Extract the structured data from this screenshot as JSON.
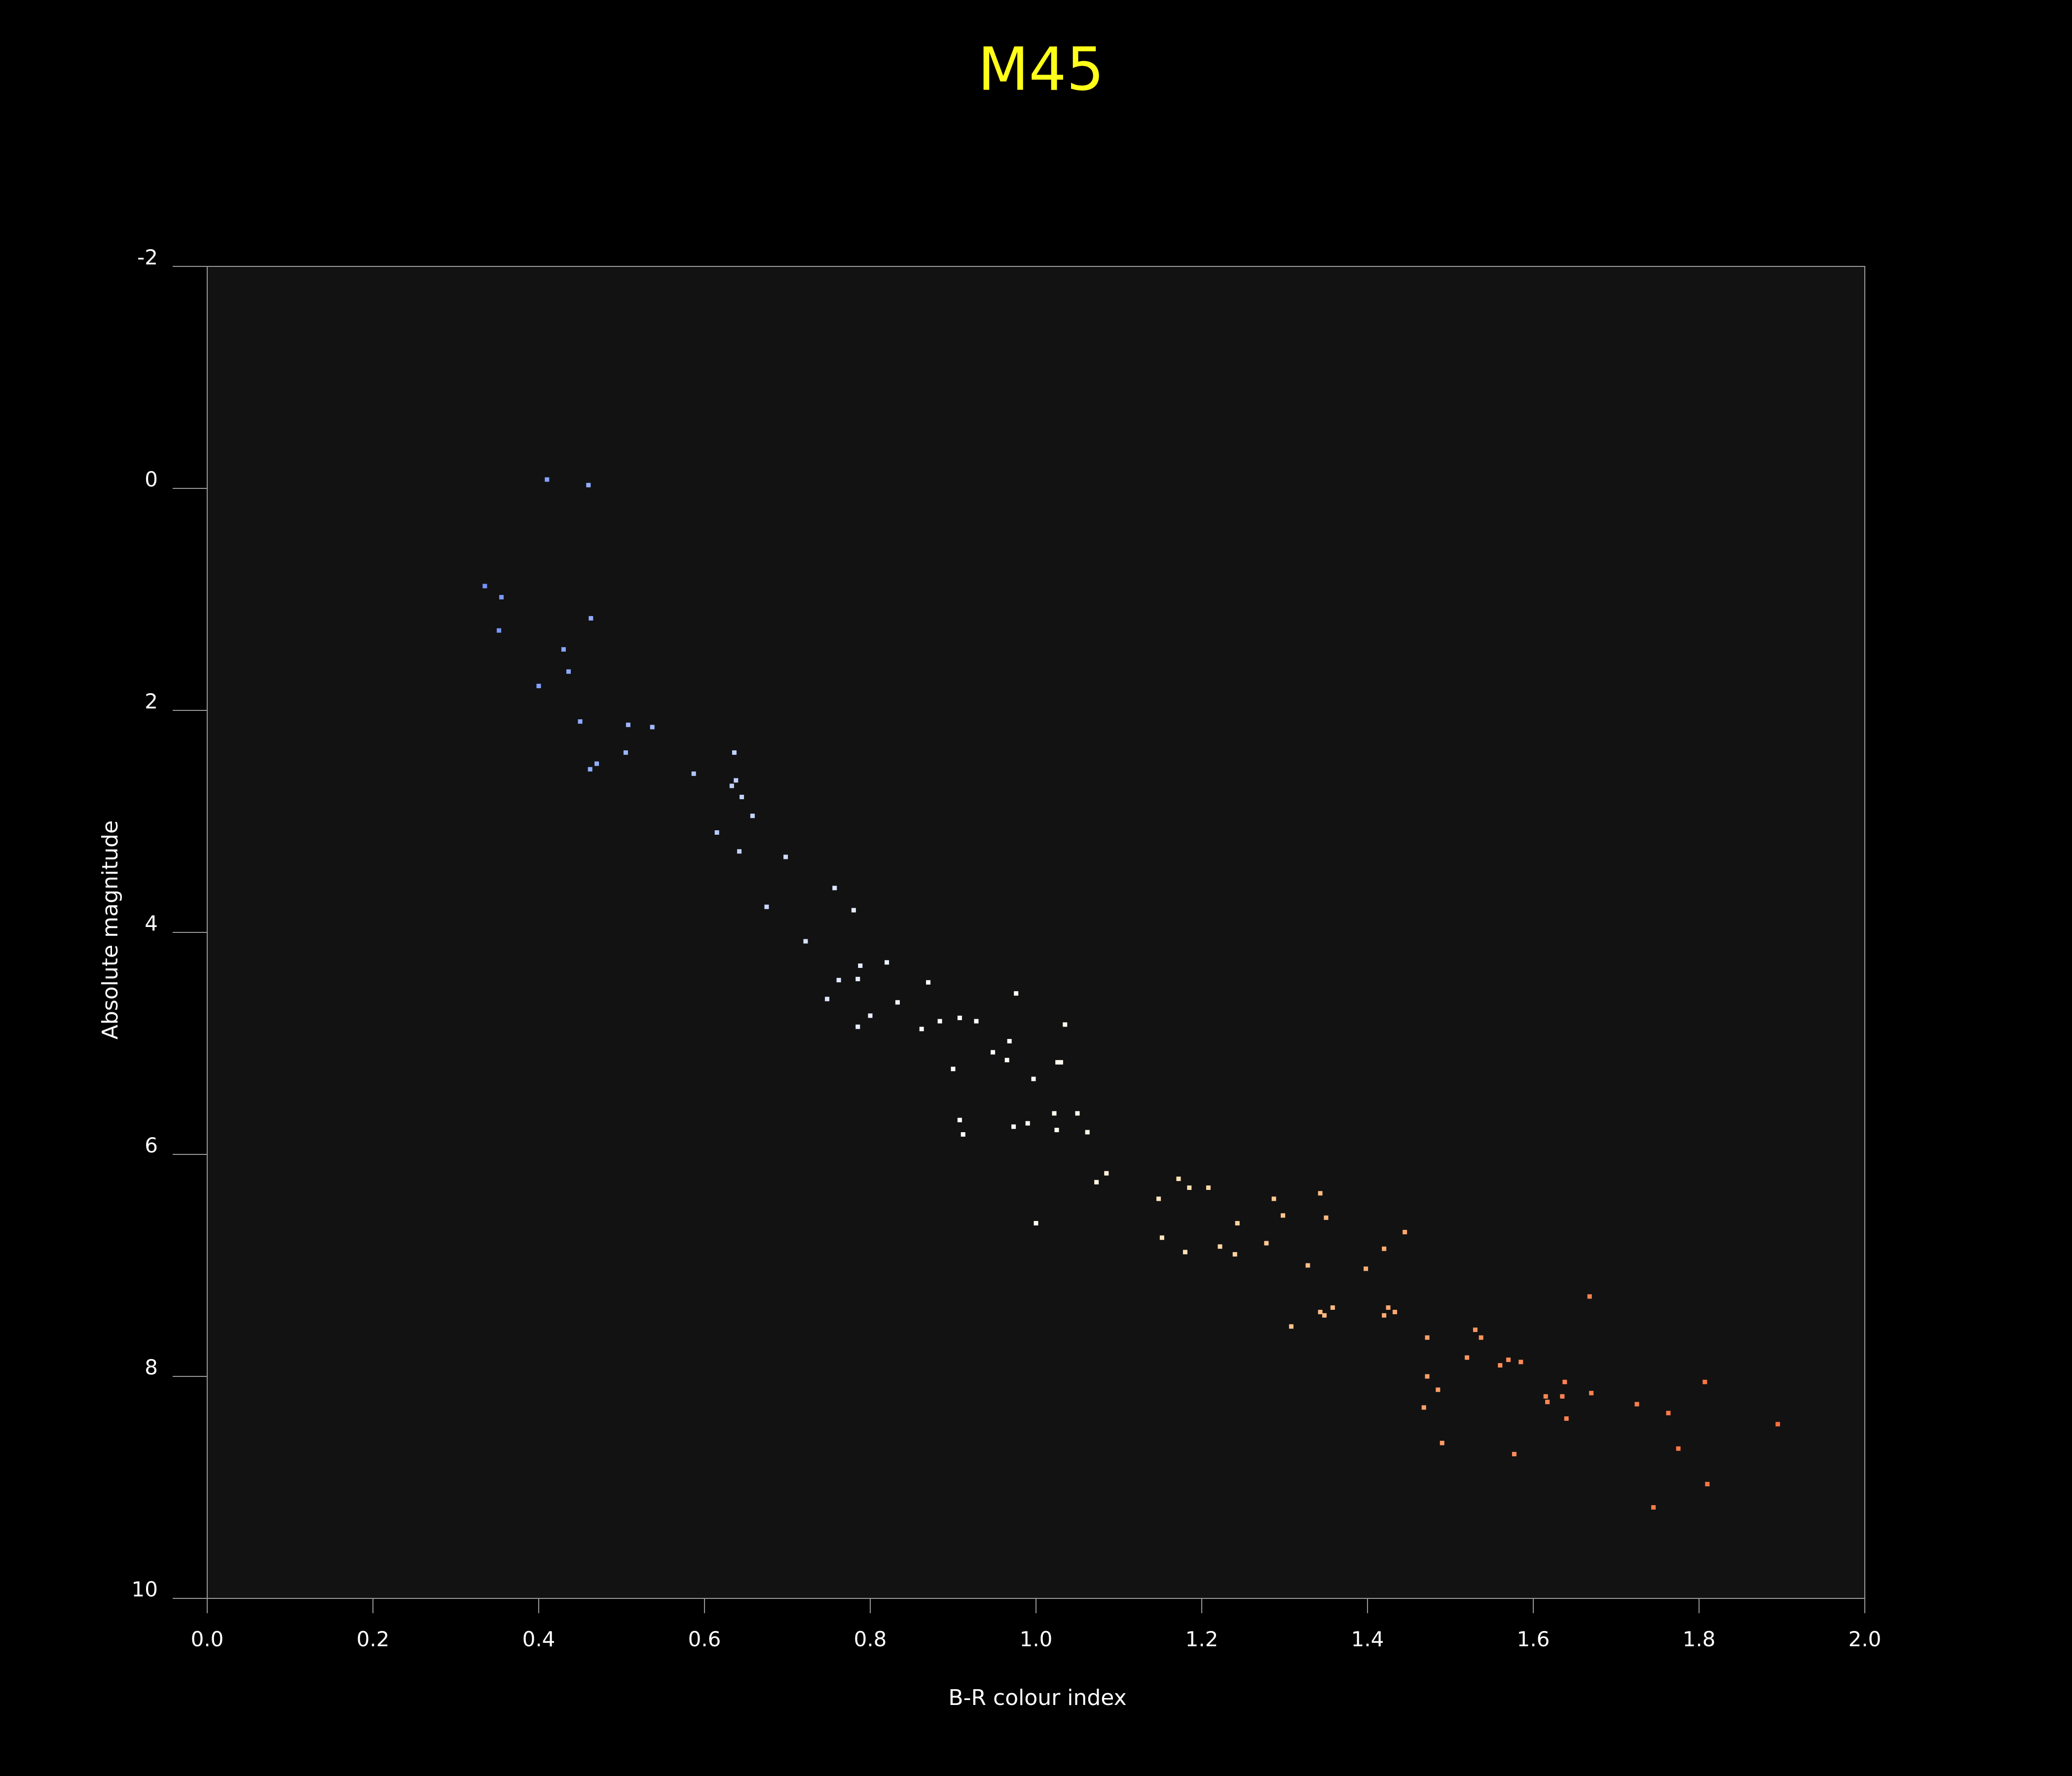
{
  "chart_data": {
    "type": "scatter",
    "title": "M45",
    "xlabel": "B-R colour index",
    "ylabel": "Absolute magnitude",
    "xlim": [
      0.0,
      2.0
    ],
    "ylim": [
      -2,
      10
    ],
    "y_inverted": true,
    "grid": false,
    "legend": "none",
    "x_ticks": [
      "0.0",
      "0.2",
      "0.4",
      "0.6",
      "0.8",
      "1.0",
      "1.2",
      "1.4",
      "1.6",
      "1.8",
      "2.0"
    ],
    "y_ticks": [
      "-2",
      "0",
      "2",
      "4",
      "6",
      "8",
      "10"
    ],
    "colors": {
      "background": "#000000",
      "plot_background": "#121212",
      "title": "#ffff1a",
      "axis": "#9a9a9a",
      "text": "#ffffff"
    },
    "x": [
      0.41,
      0.46,
      0.335,
      0.355,
      0.352,
      0.463,
      0.43,
      0.436,
      0.4,
      0.45,
      0.508,
      0.537,
      0.505,
      0.47,
      0.462,
      0.587,
      0.636,
      0.638,
      0.633,
      0.645,
      0.658,
      0.615,
      0.642,
      0.698,
      0.675,
      0.722,
      0.757,
      0.78,
      0.788,
      0.82,
      0.762,
      0.785,
      0.748,
      0.87,
      0.976,
      0.833,
      0.8,
      0.785,
      0.908,
      0.928,
      0.884,
      0.862,
      1.035,
      0.968,
      0.948,
      0.965,
      0.9,
      1.026,
      1.03,
      0.997,
      1.05,
      1.022,
      0.908,
      0.912,
      0.99,
      0.973,
      1.025,
      1.062,
      1.0,
      1.085,
      1.073,
      1.172,
      1.185,
      1.208,
      1.148,
      1.243,
      1.287,
      1.298,
      1.343,
      1.35,
      1.152,
      1.18,
      1.222,
      1.24,
      1.278,
      1.445,
      1.42,
      1.328,
      1.398,
      1.358,
      1.425,
      1.343,
      1.433,
      1.348,
      1.42,
      1.308,
      1.668,
      1.53,
      1.472,
      1.537,
      1.52,
      1.57,
      1.585,
      1.56,
      1.472,
      1.485,
      1.638,
      1.615,
      1.635,
      1.617,
      1.67,
      1.807,
      1.468,
      1.725,
      1.763,
      1.64,
      1.895,
      1.49,
      1.775,
      1.577,
      1.81,
      1.745
    ],
    "y": [
      -0.08,
      -0.03,
      0.88,
      0.98,
      1.28,
      1.17,
      1.45,
      1.65,
      1.78,
      2.1,
      2.13,
      2.15,
      2.38,
      2.48,
      2.53,
      2.57,
      2.38,
      2.63,
      2.68,
      2.78,
      2.95,
      3.1,
      3.27,
      3.32,
      3.77,
      4.08,
      3.6,
      3.8,
      4.3,
      4.27,
      4.43,
      4.42,
      4.6,
      4.45,
      4.55,
      4.63,
      4.75,
      4.85,
      4.77,
      4.8,
      4.8,
      4.87,
      4.83,
      4.98,
      5.08,
      5.15,
      5.23,
      5.17,
      5.17,
      5.32,
      5.63,
      5.63,
      5.69,
      5.82,
      5.72,
      5.75,
      5.78,
      5.8,
      6.62,
      6.17,
      6.25,
      6.22,
      6.3,
      6.3,
      6.4,
      6.62,
      6.4,
      6.55,
      6.35,
      6.57,
      6.75,
      6.88,
      6.83,
      6.9,
      6.8,
      6.7,
      6.85,
      7.0,
      7.03,
      7.38,
      7.38,
      7.42,
      7.42,
      7.45,
      7.45,
      7.55,
      7.28,
      7.58,
      7.65,
      7.65,
      7.83,
      7.85,
      7.87,
      7.9,
      8.0,
      8.12,
      8.05,
      8.18,
      8.18,
      8.23,
      8.15,
      8.05,
      8.28,
      8.25,
      8.33,
      8.38,
      8.43,
      8.6,
      8.65,
      8.7,
      8.97,
      9.18
    ]
  }
}
